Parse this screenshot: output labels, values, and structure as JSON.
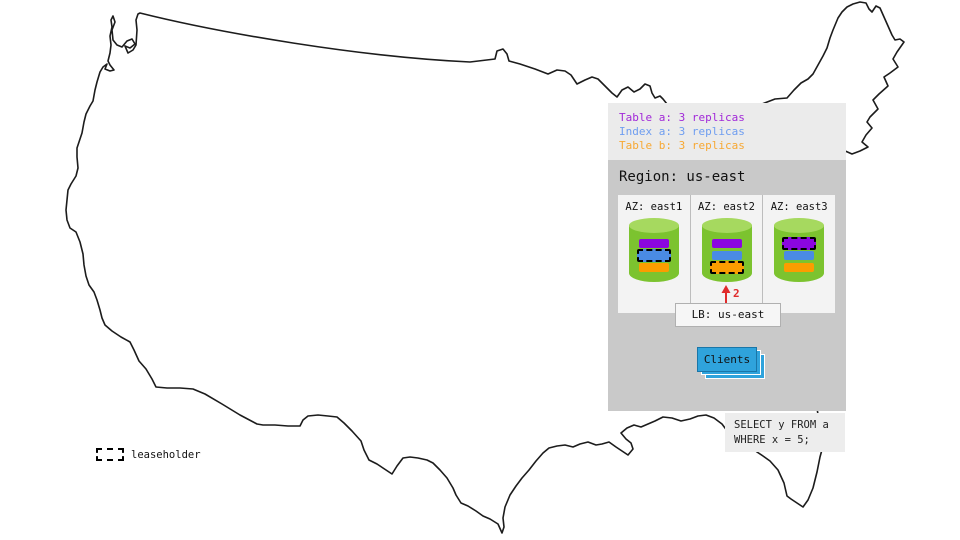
{
  "legend": {
    "items": [
      {
        "label": "Table a: 3 replicas",
        "color": "#a128d8"
      },
      {
        "label": "Index a: 3 replicas",
        "color": "#6e9df0"
      },
      {
        "label": "Table b: 3 replicas",
        "color": "#f7a833"
      }
    ]
  },
  "region": {
    "title": "Region: us-east",
    "zones": [
      {
        "label": "AZ: east1",
        "replicas": [
          {
            "name": "table-a",
            "color": "#8b06df",
            "leaseholder": false
          },
          {
            "name": "index-a",
            "color": "#4a8be4",
            "leaseholder": true
          },
          {
            "name": "table-b",
            "color": "#fb9d00",
            "leaseholder": false
          }
        ]
      },
      {
        "label": "AZ: east2",
        "replicas": [
          {
            "name": "table-a",
            "color": "#8b06df",
            "leaseholder": false
          },
          {
            "name": "index-a",
            "color": "#4a8be4",
            "leaseholder": false
          },
          {
            "name": "table-b",
            "color": "#fb9d00",
            "leaseholder": true
          }
        ]
      },
      {
        "label": "AZ: east3",
        "replicas": [
          {
            "name": "table-a",
            "color": "#8b06df",
            "leaseholder": true
          },
          {
            "name": "index-a",
            "color": "#4a8be4",
            "leaseholder": false
          },
          {
            "name": "table-b",
            "color": "#fb9d00",
            "leaseholder": false
          }
        ]
      }
    ],
    "load_balancer": {
      "label": "LB: us-east"
    },
    "clients": {
      "label": "Clients"
    },
    "arrow": {
      "label": "2",
      "color": "#e02b2b"
    }
  },
  "query": {
    "lines": [
      "SELECT y FROM a",
      "WHERE x = 5;"
    ]
  },
  "map": {
    "leaseholder_label": "leaseholder"
  }
}
